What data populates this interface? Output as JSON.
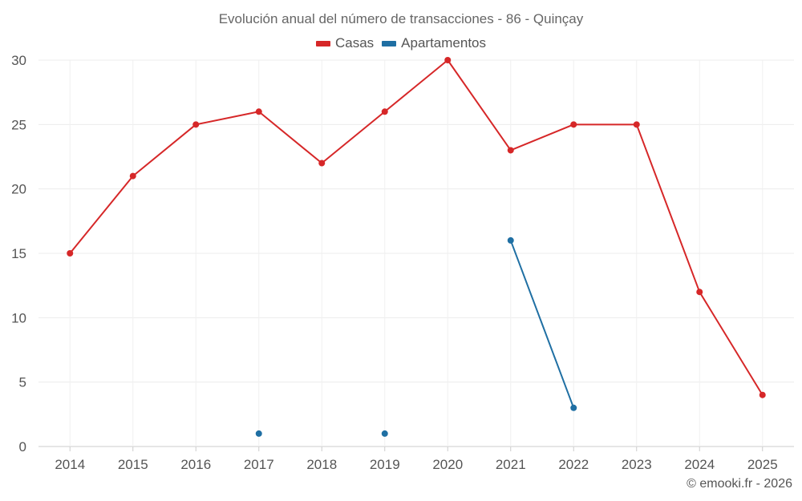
{
  "chart_data": {
    "type": "line",
    "title": "Evolución anual del número de transacciones - 86 - Quinçay",
    "xlabel": "",
    "ylabel": "",
    "categories": [
      "2014",
      "2015",
      "2016",
      "2017",
      "2018",
      "2019",
      "2020",
      "2021",
      "2022",
      "2023",
      "2024",
      "2025"
    ],
    "ylim": [
      0,
      30
    ],
    "yticks": [
      0,
      5,
      10,
      15,
      20,
      25,
      30
    ],
    "grid": true,
    "legend_position": "top-center",
    "series": [
      {
        "name": "Casas",
        "color": "#d62728",
        "values": [
          15,
          21,
          25,
          26,
          22,
          26,
          30,
          23,
          25,
          25,
          12,
          4
        ]
      },
      {
        "name": "Apartamentos",
        "color": "#1f6fa3",
        "values": [
          null,
          null,
          null,
          1,
          null,
          1,
          null,
          16,
          3,
          null,
          null,
          null
        ]
      }
    ]
  },
  "footer": {
    "credit": "© emooki.fr - 2026"
  }
}
